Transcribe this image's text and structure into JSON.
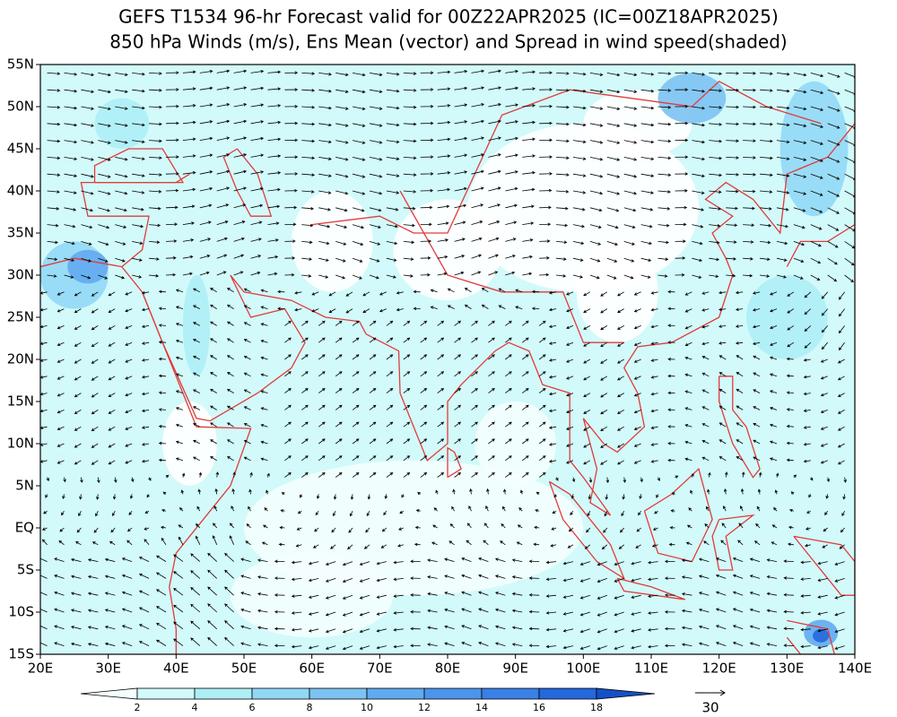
{
  "chart_data": {
    "type": "map",
    "title": "GEFS T1534 96-hr Forecast valid for 00Z22APR2025 (IC=00Z18APR2025)",
    "subtitle": "850 hPa Winds (m/s), Ens Mean (vector) and Spread in wind speed(shaded)",
    "xlim": [
      20,
      140
    ],
    "xticks": [
      {
        "value": 20,
        "label": "20E"
      },
      {
        "value": 30,
        "label": "30E"
      },
      {
        "value": 40,
        "label": "40E"
      },
      {
        "value": 50,
        "label": "50E"
      },
      {
        "value": 60,
        "label": "60E"
      },
      {
        "value": 70,
        "label": "70E"
      },
      {
        "value": 80,
        "label": "80E"
      },
      {
        "value": 90,
        "label": "90E"
      },
      {
        "value": 100,
        "label": "100E"
      },
      {
        "value": 110,
        "label": "110E"
      },
      {
        "value": 120,
        "label": "120E"
      },
      {
        "value": 130,
        "label": "130E"
      },
      {
        "value": 140,
        "label": "140E"
      }
    ],
    "ylim": [
      -15,
      55
    ],
    "yticks": [
      {
        "value": -15,
        "label": "15S"
      },
      {
        "value": -10,
        "label": "10S"
      },
      {
        "value": -5,
        "label": "5S"
      },
      {
        "value": 0,
        "label": "EQ"
      },
      {
        "value": 5,
        "label": "5N"
      },
      {
        "value": 10,
        "label": "10N"
      },
      {
        "value": 15,
        "label": "15N"
      },
      {
        "value": 20,
        "label": "20N"
      },
      {
        "value": 25,
        "label": "25N"
      },
      {
        "value": 30,
        "label": "30N"
      },
      {
        "value": 35,
        "label": "35N"
      },
      {
        "value": 40,
        "label": "40N"
      },
      {
        "value": 45,
        "label": "45N"
      },
      {
        "value": 50,
        "label": "50N"
      },
      {
        "value": 55,
        "label": "55N"
      }
    ],
    "colorbar": {
      "levels": [
        2,
        4,
        6,
        8,
        10,
        12,
        14,
        16,
        18
      ],
      "colors": [
        "#f4fefe",
        "#d2fafa",
        "#aeeef6",
        "#92d8f6",
        "#7cc2f2",
        "#62aaf0",
        "#4c94ec",
        "#3a80e6",
        "#2468dc",
        "#1450c8"
      ]
    },
    "reference_vector": 30,
    "coastline_color": "#e23a3a"
  }
}
